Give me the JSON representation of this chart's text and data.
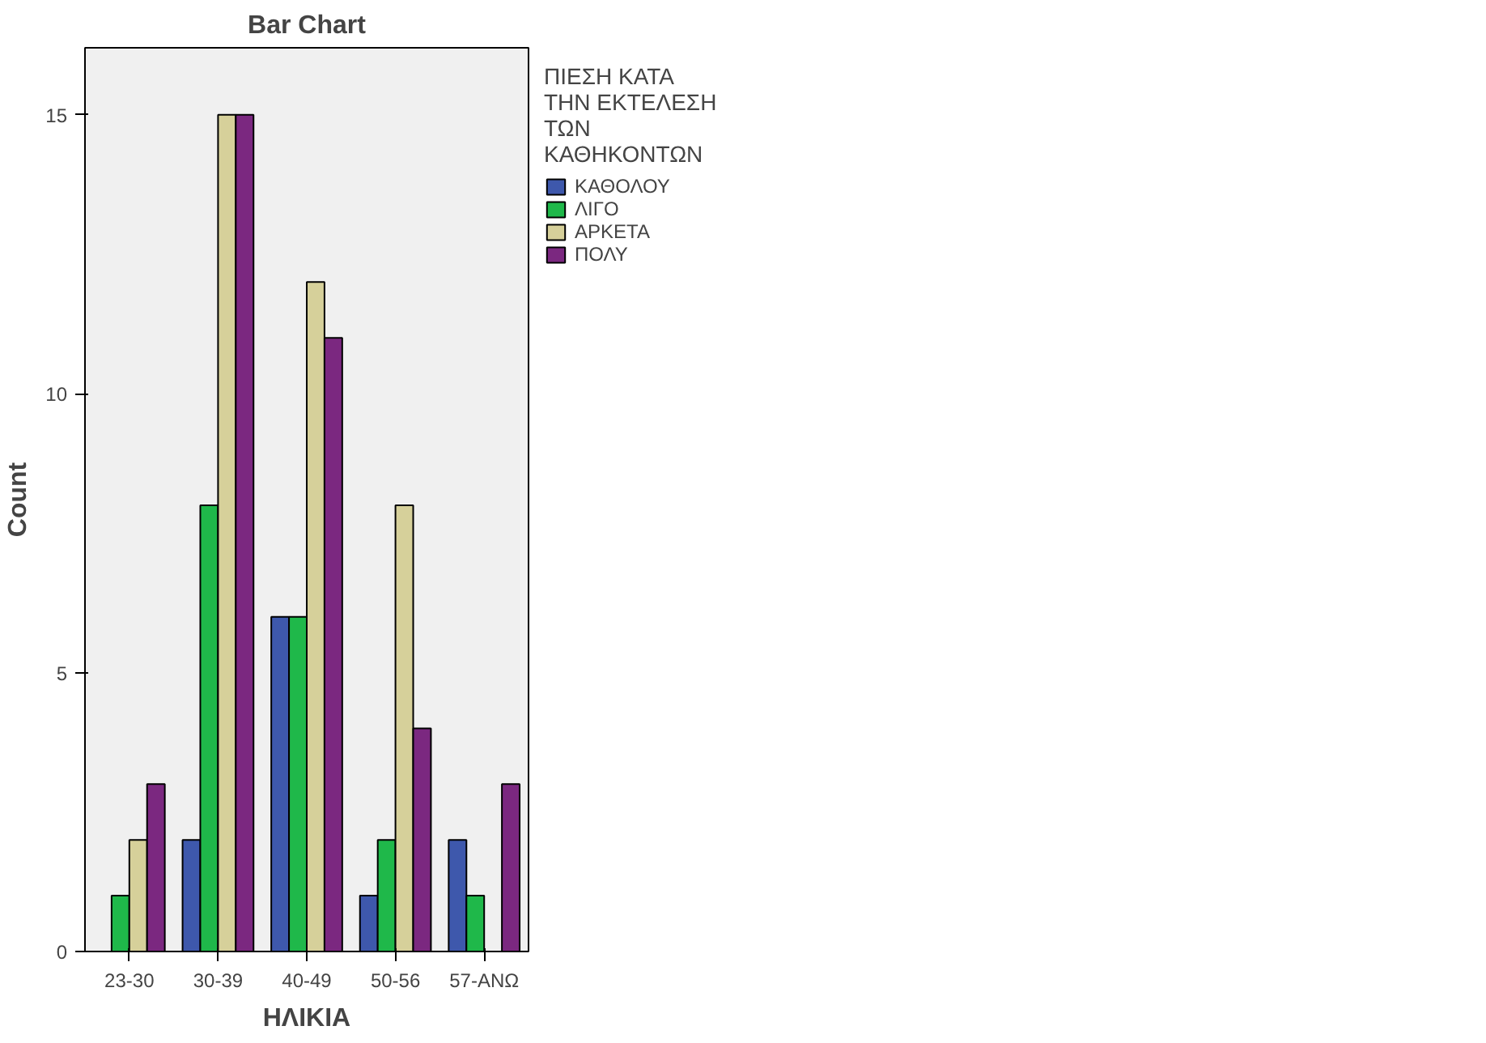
{
  "chart_data": {
    "type": "bar",
    "title": "Bar Chart",
    "xlabel": "ΗΛΙΚΙΑ",
    "ylabel": "Count",
    "legend_title": "ΠΙΕΣΗ ΚΑΤΑ ΤΗΝ ΕΚΤΕΛΕΣΗ ΤΩΝ ΚΑΘΗΚΟΝΤΩΝ",
    "categories": [
      "23-30",
      "30-39",
      "40-49",
      "50-56",
      "57-ΑΝΩ"
    ],
    "series": [
      {
        "name": "ΚΑΘΟΛΟΥ",
        "color": "#3e58ac",
        "values": [
          null,
          2,
          6,
          1,
          2
        ]
      },
      {
        "name": "ΛΙΓΟ",
        "color": "#1fb84a",
        "values": [
          1,
          8,
          6,
          2,
          1
        ]
      },
      {
        "name": "ΑΡΚΕΤΑ",
        "color": "#d6d09a",
        "values": [
          2,
          15,
          12,
          8,
          null
        ]
      },
      {
        "name": "ΠΟΛΥ",
        "color": "#7b2880",
        "values": [
          3,
          15,
          11,
          4,
          3
        ]
      }
    ],
    "ylim": [
      0,
      16.2
    ],
    "yticks": [
      0,
      5,
      10,
      15
    ],
    "grid": false,
    "legend": "right"
  }
}
